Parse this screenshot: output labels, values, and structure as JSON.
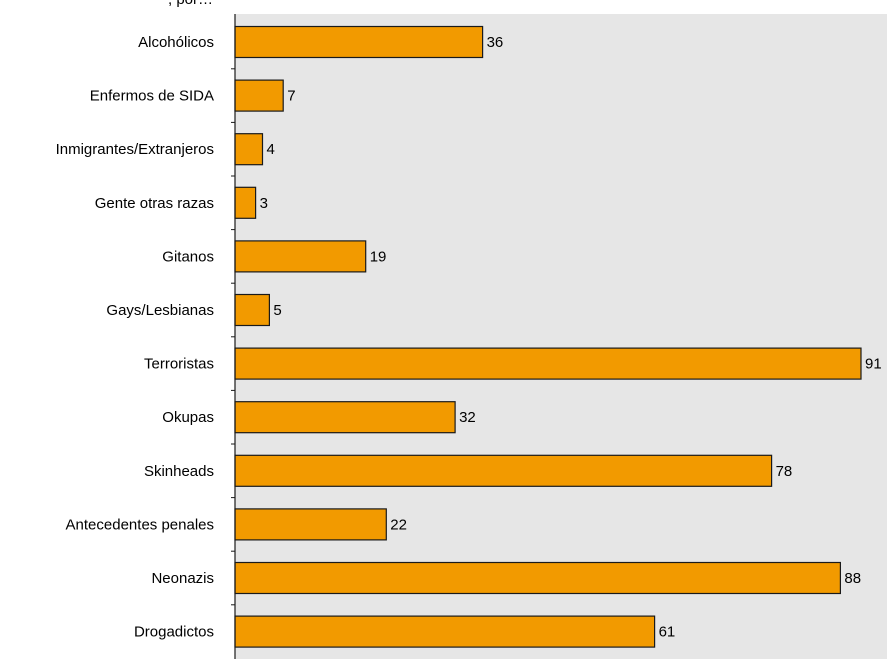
{
  "chart_data": {
    "type": "bar",
    "orientation": "horizontal",
    "title": ", por…",
    "categories": [
      "Alcohólicos",
      "Enfermos de SIDA",
      "Inmigrantes/Extranjeros",
      "Gente otras razas",
      "Gitanos",
      "Gays/Lesbianas",
      "Terroristas",
      "Okupas",
      "Skinheads",
      "Antecedentes penales",
      "Neonazis",
      "Drogadictos"
    ],
    "values": [
      36,
      7,
      4,
      3,
      19,
      5,
      91,
      32,
      78,
      22,
      88,
      61
    ],
    "value_labels": [
      "36",
      "7",
      "4",
      "3",
      "19",
      "5",
      "91",
      "32",
      "78",
      "22",
      "88",
      "61"
    ],
    "xlim": [
      0,
      91
    ],
    "grid": false,
    "legend": "none"
  },
  "colors": {
    "bar_fill": "#F29A00",
    "bar_stroke": "#1a1a1a",
    "plot_background": "#E6E6E6",
    "axis": "#1a1a1a",
    "text": "#000000"
  }
}
